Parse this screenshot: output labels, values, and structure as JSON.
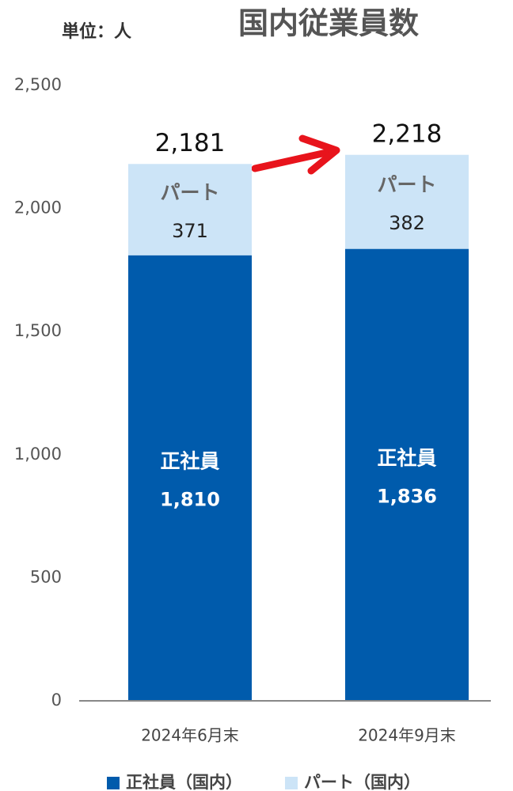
{
  "chart_data": {
    "type": "stacked_bar",
    "title": "国内従業員数",
    "unit_label": "単位：人",
    "categories": [
      "2024年6月末",
      "2024年9月末"
    ],
    "series": [
      {
        "name": "正社員（国内）",
        "segment_label": "正社員",
        "color": "#005bac",
        "label_color": "#ffffff",
        "values": [
          1810,
          1836
        ],
        "value_labels": [
          "1,810",
          "1,836"
        ]
      },
      {
        "name": "パート（国内）",
        "segment_label": "パート",
        "color": "#cce4f7",
        "label_color": "#222222",
        "values": [
          371,
          382
        ]
      }
    ],
    "totals": {
      "values": [
        2181,
        2218
      ],
      "value_labels": [
        "2,181",
        "2,218"
      ]
    },
    "ylim": [
      0,
      2500
    ],
    "yticks": [
      0,
      500,
      {
        "value": 1000,
        "label": "1,000"
      },
      {
        "value": 1500,
        "label": "1,500"
      },
      {
        "value": 2000,
        "label": "2,000"
      },
      {
        "value": 2500,
        "label": "2,500"
      }
    ],
    "grid": false
  }
}
